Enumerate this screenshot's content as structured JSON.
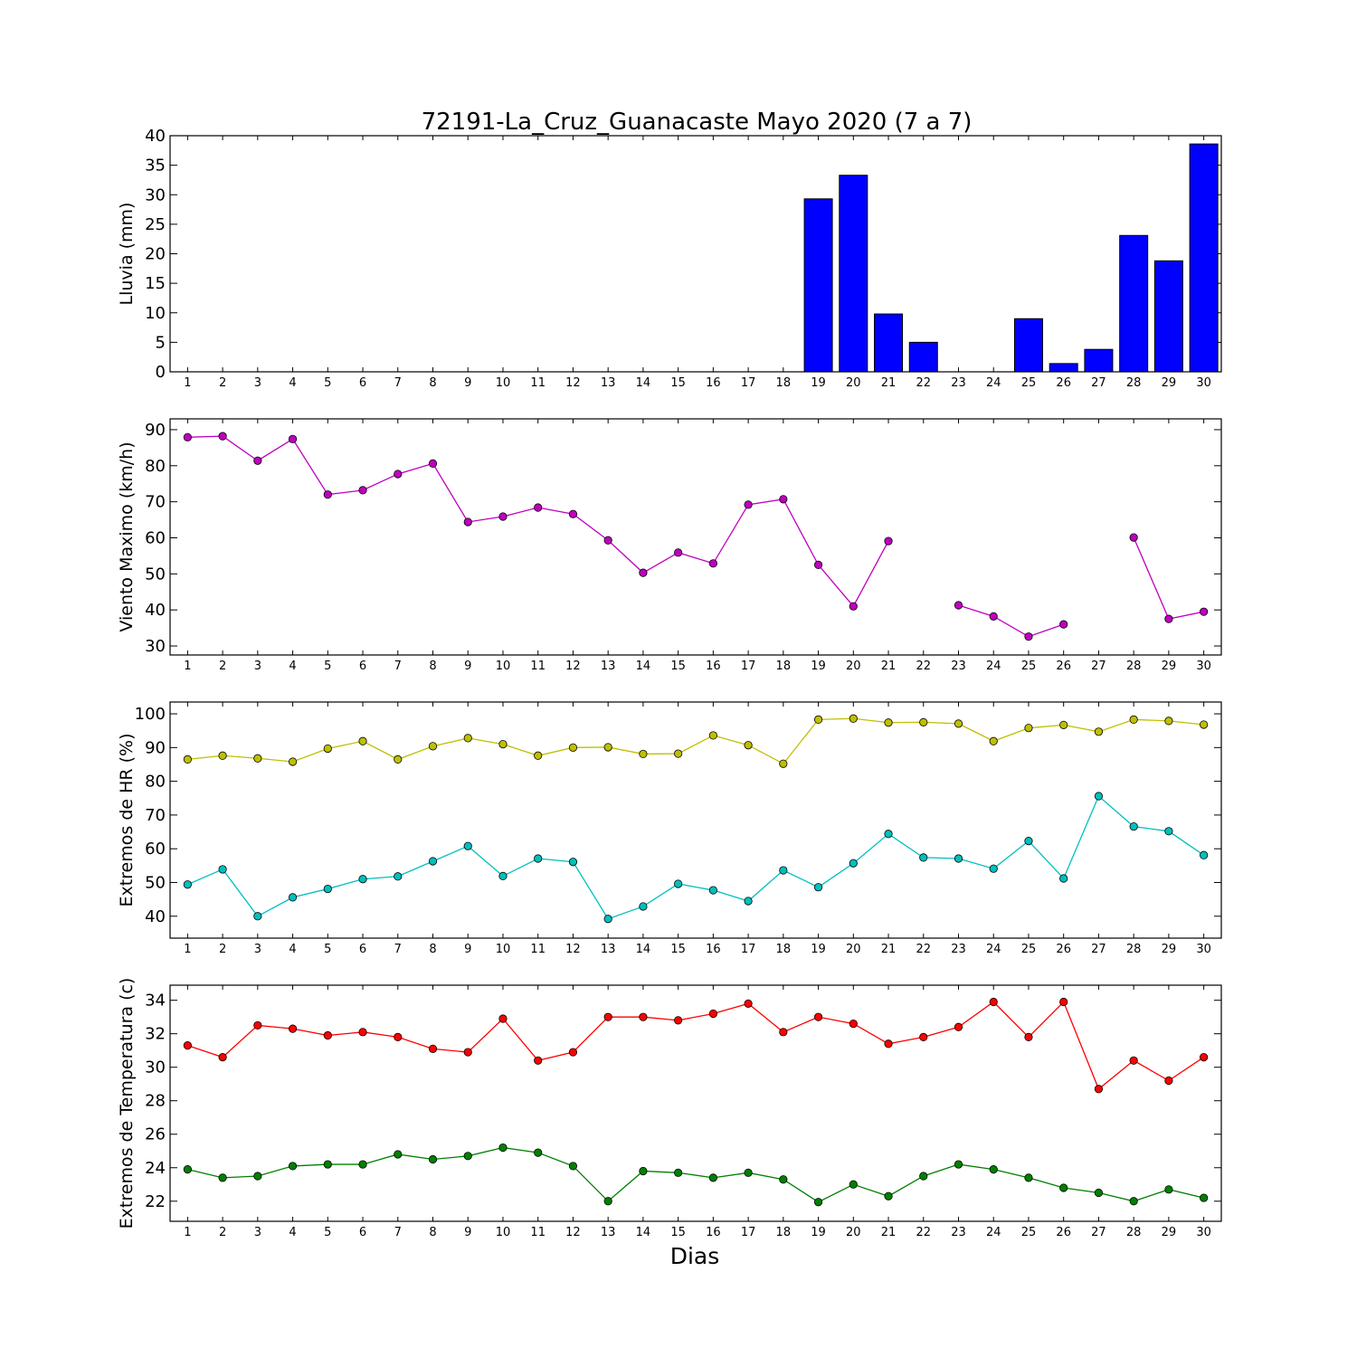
{
  "title": "72191-La_Cruz_Guanacaste Mayo 2020  (7 a 7)",
  "xlabel": "Dias",
  "chart_data": [
    {
      "type": "bar",
      "ylabel": "Lluvia (mm)",
      "ylim": [
        0,
        40
      ],
      "yticks": [
        0,
        5,
        10,
        15,
        20,
        25,
        30,
        35,
        40
      ],
      "x": [
        1,
        2,
        3,
        4,
        5,
        6,
        7,
        8,
        9,
        10,
        11,
        12,
        13,
        14,
        15,
        16,
        17,
        18,
        19,
        20,
        21,
        22,
        23,
        24,
        25,
        26,
        27,
        28,
        29,
        30
      ],
      "series": [
        {
          "color": "#0000ff",
          "values": [
            0,
            0,
            0,
            0,
            0,
            0,
            0,
            0,
            0,
            0,
            0,
            0,
            0,
            0,
            0,
            0,
            0,
            0,
            29.3,
            33.3,
            9.8,
            5.0,
            0,
            0,
            9.0,
            1.4,
            3.8,
            23.1,
            18.8,
            38.6
          ]
        }
      ]
    },
    {
      "type": "line",
      "ylabel": "Viento Maximo (km/h)",
      "ylim": [
        27.5,
        93
      ],
      "yticks": [
        30,
        40,
        50,
        60,
        70,
        80,
        90
      ],
      "x": [
        1,
        2,
        3,
        4,
        5,
        6,
        7,
        8,
        9,
        10,
        11,
        12,
        13,
        14,
        15,
        16,
        17,
        18,
        19,
        20,
        21,
        22,
        23,
        24,
        25,
        26,
        27,
        28,
        29,
        30
      ],
      "series": [
        {
          "color": "#bf00bf",
          "values": [
            87.9,
            88.2,
            81.4,
            87.4,
            72.0,
            73.2,
            77.7,
            80.6,
            64.4,
            65.9,
            68.4,
            66.6,
            59.3,
            50.3,
            55.9,
            52.9,
            69.2,
            70.7,
            52.5,
            41.0,
            59.1,
            null,
            41.3,
            38.2,
            32.6,
            36.0,
            null,
            60.1,
            37.5,
            39.5
          ]
        }
      ]
    },
    {
      "type": "line",
      "ylabel": "Extremos de HR (%)",
      "ylim": [
        33.5,
        103.5
      ],
      "yticks": [
        40,
        50,
        60,
        70,
        80,
        90,
        100
      ],
      "x": [
        1,
        2,
        3,
        4,
        5,
        6,
        7,
        8,
        9,
        10,
        11,
        12,
        13,
        14,
        15,
        16,
        17,
        18,
        19,
        20,
        21,
        22,
        23,
        24,
        25,
        26,
        27,
        28,
        29,
        30
      ],
      "series": [
        {
          "color": "#bfbf00",
          "values": [
            86.5,
            87.6,
            86.8,
            85.8,
            89.7,
            91.9,
            86.5,
            90.4,
            92.8,
            91.0,
            87.6,
            90.0,
            90.1,
            88.1,
            88.2,
            93.6,
            90.7,
            85.2,
            98.3,
            98.6,
            97.4,
            97.5,
            97.1,
            91.9,
            95.8,
            96.7,
            94.7,
            98.3,
            97.9,
            96.8
          ]
        },
        {
          "color": "#00bfbf",
          "values": [
            49.4,
            53.9,
            40.0,
            45.6,
            48.1,
            51.0,
            51.8,
            56.3,
            60.8,
            51.9,
            57.1,
            56.1,
            39.2,
            42.9,
            49.6,
            47.7,
            44.5,
            53.6,
            48.6,
            55.7,
            64.4,
            57.4,
            57.1,
            54.1,
            62.3,
            51.2,
            75.6,
            66.6,
            65.2,
            58.1
          ]
        }
      ]
    },
    {
      "type": "line",
      "ylabel": "Extremos de Temperatura (c)",
      "ylim": [
        20.8,
        34.9
      ],
      "yticks": [
        22,
        24,
        26,
        28,
        30,
        32,
        34
      ],
      "x": [
        1,
        2,
        3,
        4,
        5,
        6,
        7,
        8,
        9,
        10,
        11,
        12,
        13,
        14,
        15,
        16,
        17,
        18,
        19,
        20,
        21,
        22,
        23,
        24,
        25,
        26,
        27,
        28,
        29,
        30
      ],
      "series": [
        {
          "color": "#ff0000",
          "values": [
            31.3,
            30.6,
            32.5,
            32.3,
            31.9,
            32.1,
            31.8,
            31.1,
            30.9,
            32.9,
            30.4,
            30.9,
            33.0,
            33.0,
            32.8,
            33.2,
            33.8,
            32.1,
            33.0,
            32.6,
            31.4,
            31.8,
            32.4,
            33.9,
            31.8,
            33.9,
            28.7,
            30.4,
            29.2,
            30.6
          ]
        },
        {
          "color": "#008000",
          "values": [
            23.9,
            23.4,
            23.5,
            24.1,
            24.2,
            24.2,
            24.8,
            24.5,
            24.7,
            25.2,
            24.9,
            24.1,
            22.0,
            23.8,
            23.7,
            23.4,
            23.7,
            23.3,
            21.95,
            23.0,
            22.3,
            23.5,
            24.2,
            23.9,
            23.4,
            22.8,
            22.5,
            22.0,
            22.7,
            22.2
          ]
        }
      ]
    }
  ]
}
